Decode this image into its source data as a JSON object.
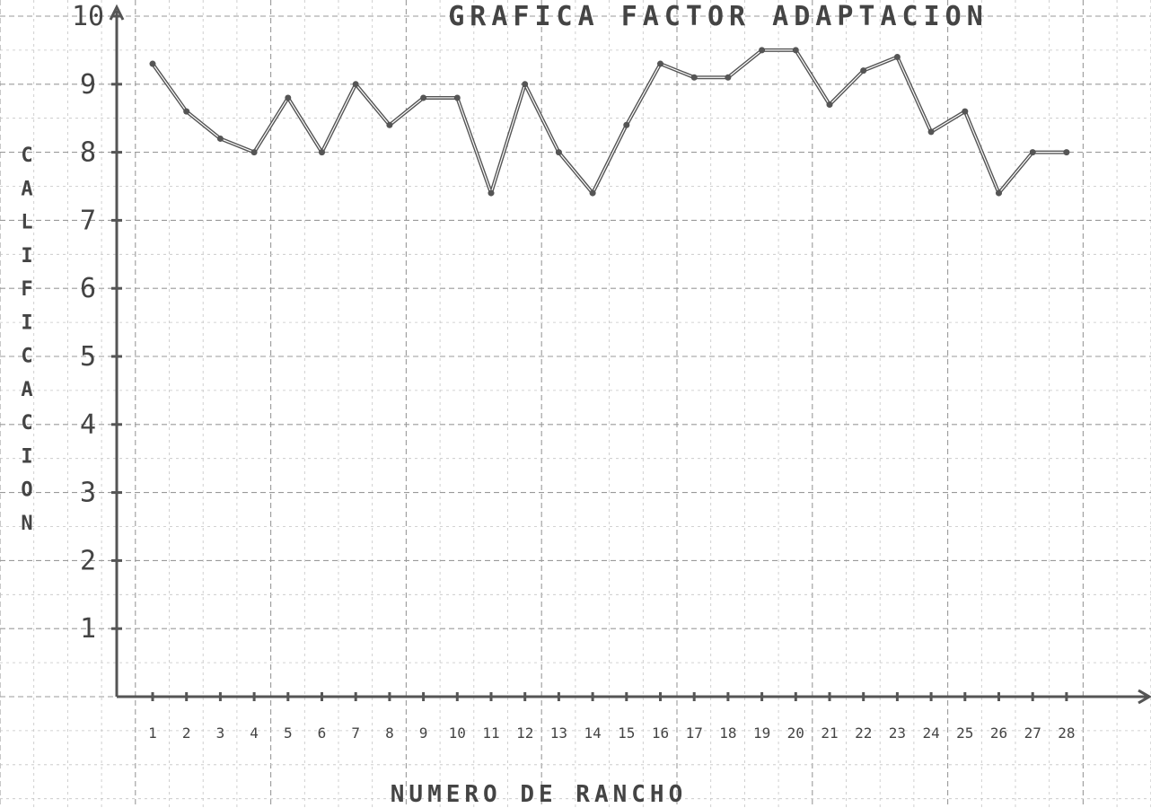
{
  "chart_data": {
    "type": "line",
    "title": "GRAFICA FACTOR ADAPTACION",
    "xlabel": "NUMERO DE RANCHO",
    "ylabel": "CALIFICACION",
    "ylim": [
      0,
      10
    ],
    "y_ticks": [
      1,
      2,
      3,
      4,
      5,
      6,
      7,
      8,
      9,
      10
    ],
    "categories": [
      "1",
      "2",
      "3",
      "4",
      "5",
      "6",
      "7",
      "8",
      "9",
      "10",
      "11",
      "12",
      "13",
      "14",
      "15",
      "16",
      "17",
      "18",
      "19",
      "20",
      "21",
      "22",
      "23",
      "24",
      "25",
      "26",
      "27",
      "28"
    ],
    "x_tick_labels": [
      "1",
      "2",
      "3",
      "4",
      "5",
      "6",
      "7",
      "8",
      "9",
      "10",
      "11",
      "12",
      "13",
      "14",
      "15",
      "16",
      "17",
      "18",
      "19",
      "20",
      "21",
      "22",
      "23",
      "24",
      "25",
      "26",
      "27",
      "28"
    ],
    "series": [
      {
        "values": [
          9.3,
          8.6,
          8.2,
          8.0,
          8.8,
          8.0,
          9.0,
          8.4,
          8.8,
          8.8,
          7.4,
          9.0,
          8.0,
          7.4,
          8.4,
          9.3,
          9.1,
          9.1,
          9.5,
          9.5,
          8.7,
          9.2,
          9.4,
          8.3,
          8.6,
          7.4,
          8.0,
          8.0
        ]
      }
    ],
    "grid": true,
    "legend": "none"
  }
}
